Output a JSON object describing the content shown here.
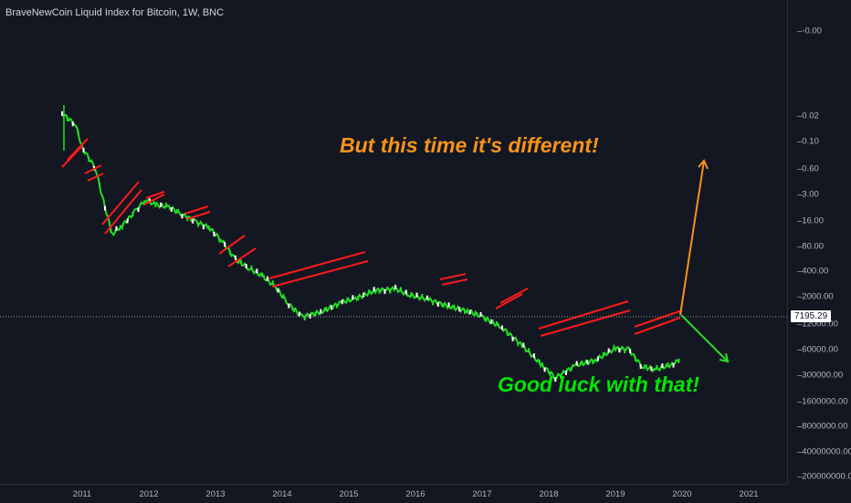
{
  "title": "BraveNewCoin Liquid Index for Bitcoin, 1W, BNC",
  "colors": {
    "background": "#131722",
    "line": "#22dd22",
    "channel": "#ff1a1a",
    "orange_arrow": "#f7931a",
    "green_arrow": "#2bdc2b",
    "orange_text": "#f7931a",
    "green_text": "#00e600"
  },
  "annotations": {
    "top": "But this time it's different!",
    "bottom": "Good luck with that!"
  },
  "price_axis": {
    "ticks": [
      "-0.00",
      "0.02",
      "0.10",
      "0.60",
      "3.00",
      "16.00",
      "80.00",
      "400.00",
      "2000.00",
      "12000.00",
      "60000.00",
      "300000.00",
      "1600000.00",
      "8000000.00",
      "40000000.00",
      "200000000.00"
    ],
    "current_price": "7195.29"
  },
  "time_axis": {
    "ticks": [
      "2011",
      "2012",
      "2013",
      "2014",
      "2015",
      "2016",
      "2017",
      "2018",
      "2019",
      "2020",
      "2021"
    ]
  },
  "chart_data": {
    "type": "line",
    "title": "BraveNewCoin Liquid Index for Bitcoin, 1W, BNC",
    "y_scale": "log-inverted",
    "x_range": [
      "2010",
      "2021"
    ],
    "current_price": 7195.29,
    "series": [
      {
        "x": [
          "2010.7",
          "2010.9",
          "2011.0",
          "2011.2",
          "2011.3",
          "2011.45",
          "2011.6",
          "2011.8",
          "2011.95",
          "2012.1",
          "2012.3",
          "2012.5",
          "2012.7",
          "2012.9",
          "2013.1",
          "2013.3",
          "2013.5",
          "2013.7",
          "2013.9",
          "2014.1",
          "2014.3",
          "2014.6",
          "2014.9",
          "2015.1",
          "2015.4",
          "2015.7",
          "2015.9",
          "2016.2",
          "2016.5",
          "2016.8",
          "2017.0",
          "2017.3",
          "2017.6",
          "2017.9",
          "2018.1",
          "2018.4",
          "2018.7",
          "2019.0",
          "2019.2",
          "2019.4",
          "2019.6",
          "2019.85",
          "2019.95"
        ],
        "values": [
          0.06,
          0.1,
          0.3,
          0.8,
          3,
          18,
          12,
          6,
          3.5,
          4.5,
          5,
          7,
          10,
          13,
          25,
          60,
          90,
          130,
          220,
          500,
          900,
          700,
          450,
          380,
          260,
          240,
          320,
          400,
          550,
          700,
          900,
          1500,
          3500,
          9000,
          16000,
          9000,
          7000,
          4000,
          4200,
          9500,
          11000,
          8500,
          7195.29
        ]
      }
    ]
  }
}
